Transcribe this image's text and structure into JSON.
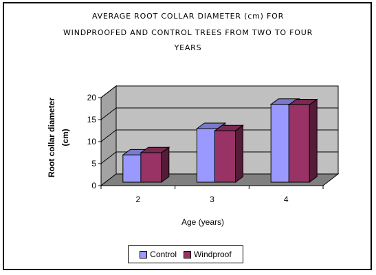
{
  "chart_data": {
    "type": "bar",
    "title_lines": [
      "AVERAGE ROOT COLLAR DIAMETER (cm) FOR",
      "WINDPROOFED AND CONTROL TREES FROM TWO TO FOUR",
      "YEARS"
    ],
    "categories": [
      "2",
      "3",
      "4"
    ],
    "series": [
      {
        "name": "Control",
        "values": [
          6.5,
          12.5,
          18
        ],
        "color": "#9999ff"
      },
      {
        "name": "Windproof",
        "values": [
          7,
          12,
          17.9
        ],
        "color": "#993366"
      }
    ],
    "xlabel": "Age (years)",
    "ylabel_line1": "Root collar diameter",
    "ylabel_line2": "(cm)",
    "ylim": [
      0,
      20
    ],
    "yticks": [
      "0",
      "5",
      "10",
      "15",
      "20"
    ],
    "grid": true,
    "legend_position": "bottom",
    "wall_color": "#c0c0c0",
    "floor_color": "#808080"
  }
}
